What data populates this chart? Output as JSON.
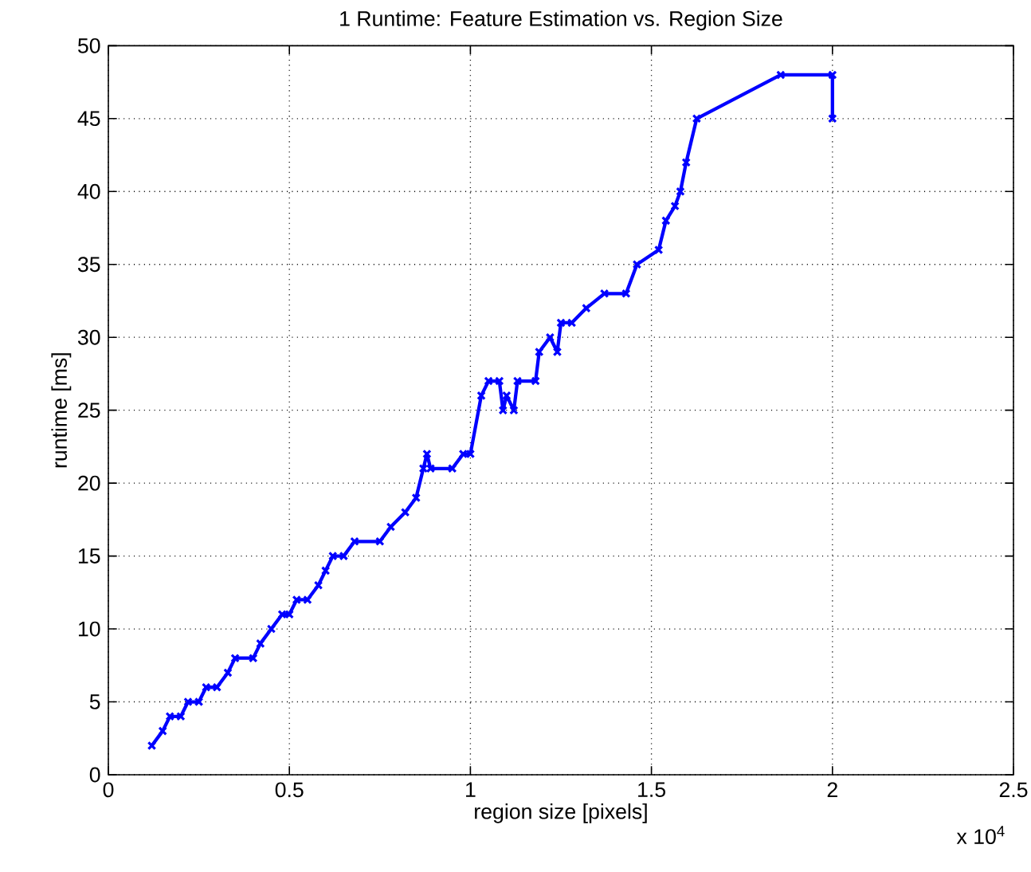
{
  "chart_data": {
    "type": "line",
    "title": "1 Runtime: Feature Estimation vs. Region Size",
    "xlabel": "region size [pixels]",
    "ylabel": "runtime [ms]",
    "annotations": [
      "x 10$^{4}$"
    ],
    "x": [
      0.12,
      0.15,
      0.17,
      0.2,
      0.22,
      0.25,
      0.27,
      0.3,
      0.33,
      0.35,
      0.4,
      0.42,
      0.45,
      0.48,
      0.5,
      0.52,
      0.55,
      0.58,
      0.6,
      0.62,
      0.65,
      0.68,
      0.75,
      0.78,
      0.82,
      0.85,
      0.87,
      0.88,
      0.89,
      0.95,
      0.98,
      1.0,
      1.03,
      1.05,
      1.08,
      1.09,
      1.1,
      1.12,
      1.13,
      1.18,
      1.19,
      1.22,
      1.24,
      1.25,
      1.28,
      1.32,
      1.37,
      1.43,
      1.46,
      1.52,
      1.54,
      1.565,
      1.58,
      1.596,
      1.625,
      1.857,
      2.0,
      2.0
    ],
    "series": [
      {
        "color": "#0000ff",
        "values": [
          2,
          3,
          4,
          4,
          5,
          5,
          6,
          6,
          7,
          8,
          8,
          9,
          10,
          11,
          11,
          12,
          12,
          13,
          14,
          15,
          15,
          16,
          16,
          17,
          18,
          19,
          21,
          22,
          21,
          21,
          22,
          22,
          26,
          27,
          27,
          25,
          26,
          25,
          27,
          27,
          29,
          30,
          29,
          31,
          31,
          32,
          33,
          33,
          35,
          36,
          38,
          39,
          40,
          42,
          45,
          48,
          48,
          45
        ]
      }
    ],
    "xlim": [
      0,
      2.5
    ],
    "ylim": [
      0,
      50
    ],
    "xticks": [
      0,
      0.5,
      1,
      1.5,
      2,
      2.5
    ],
    "yticks": [
      0,
      5,
      10,
      15,
      20,
      25,
      30,
      35,
      40,
      45,
      50
    ],
    "grid": true,
    "marker": "cross",
    "line_style": "solid"
  }
}
